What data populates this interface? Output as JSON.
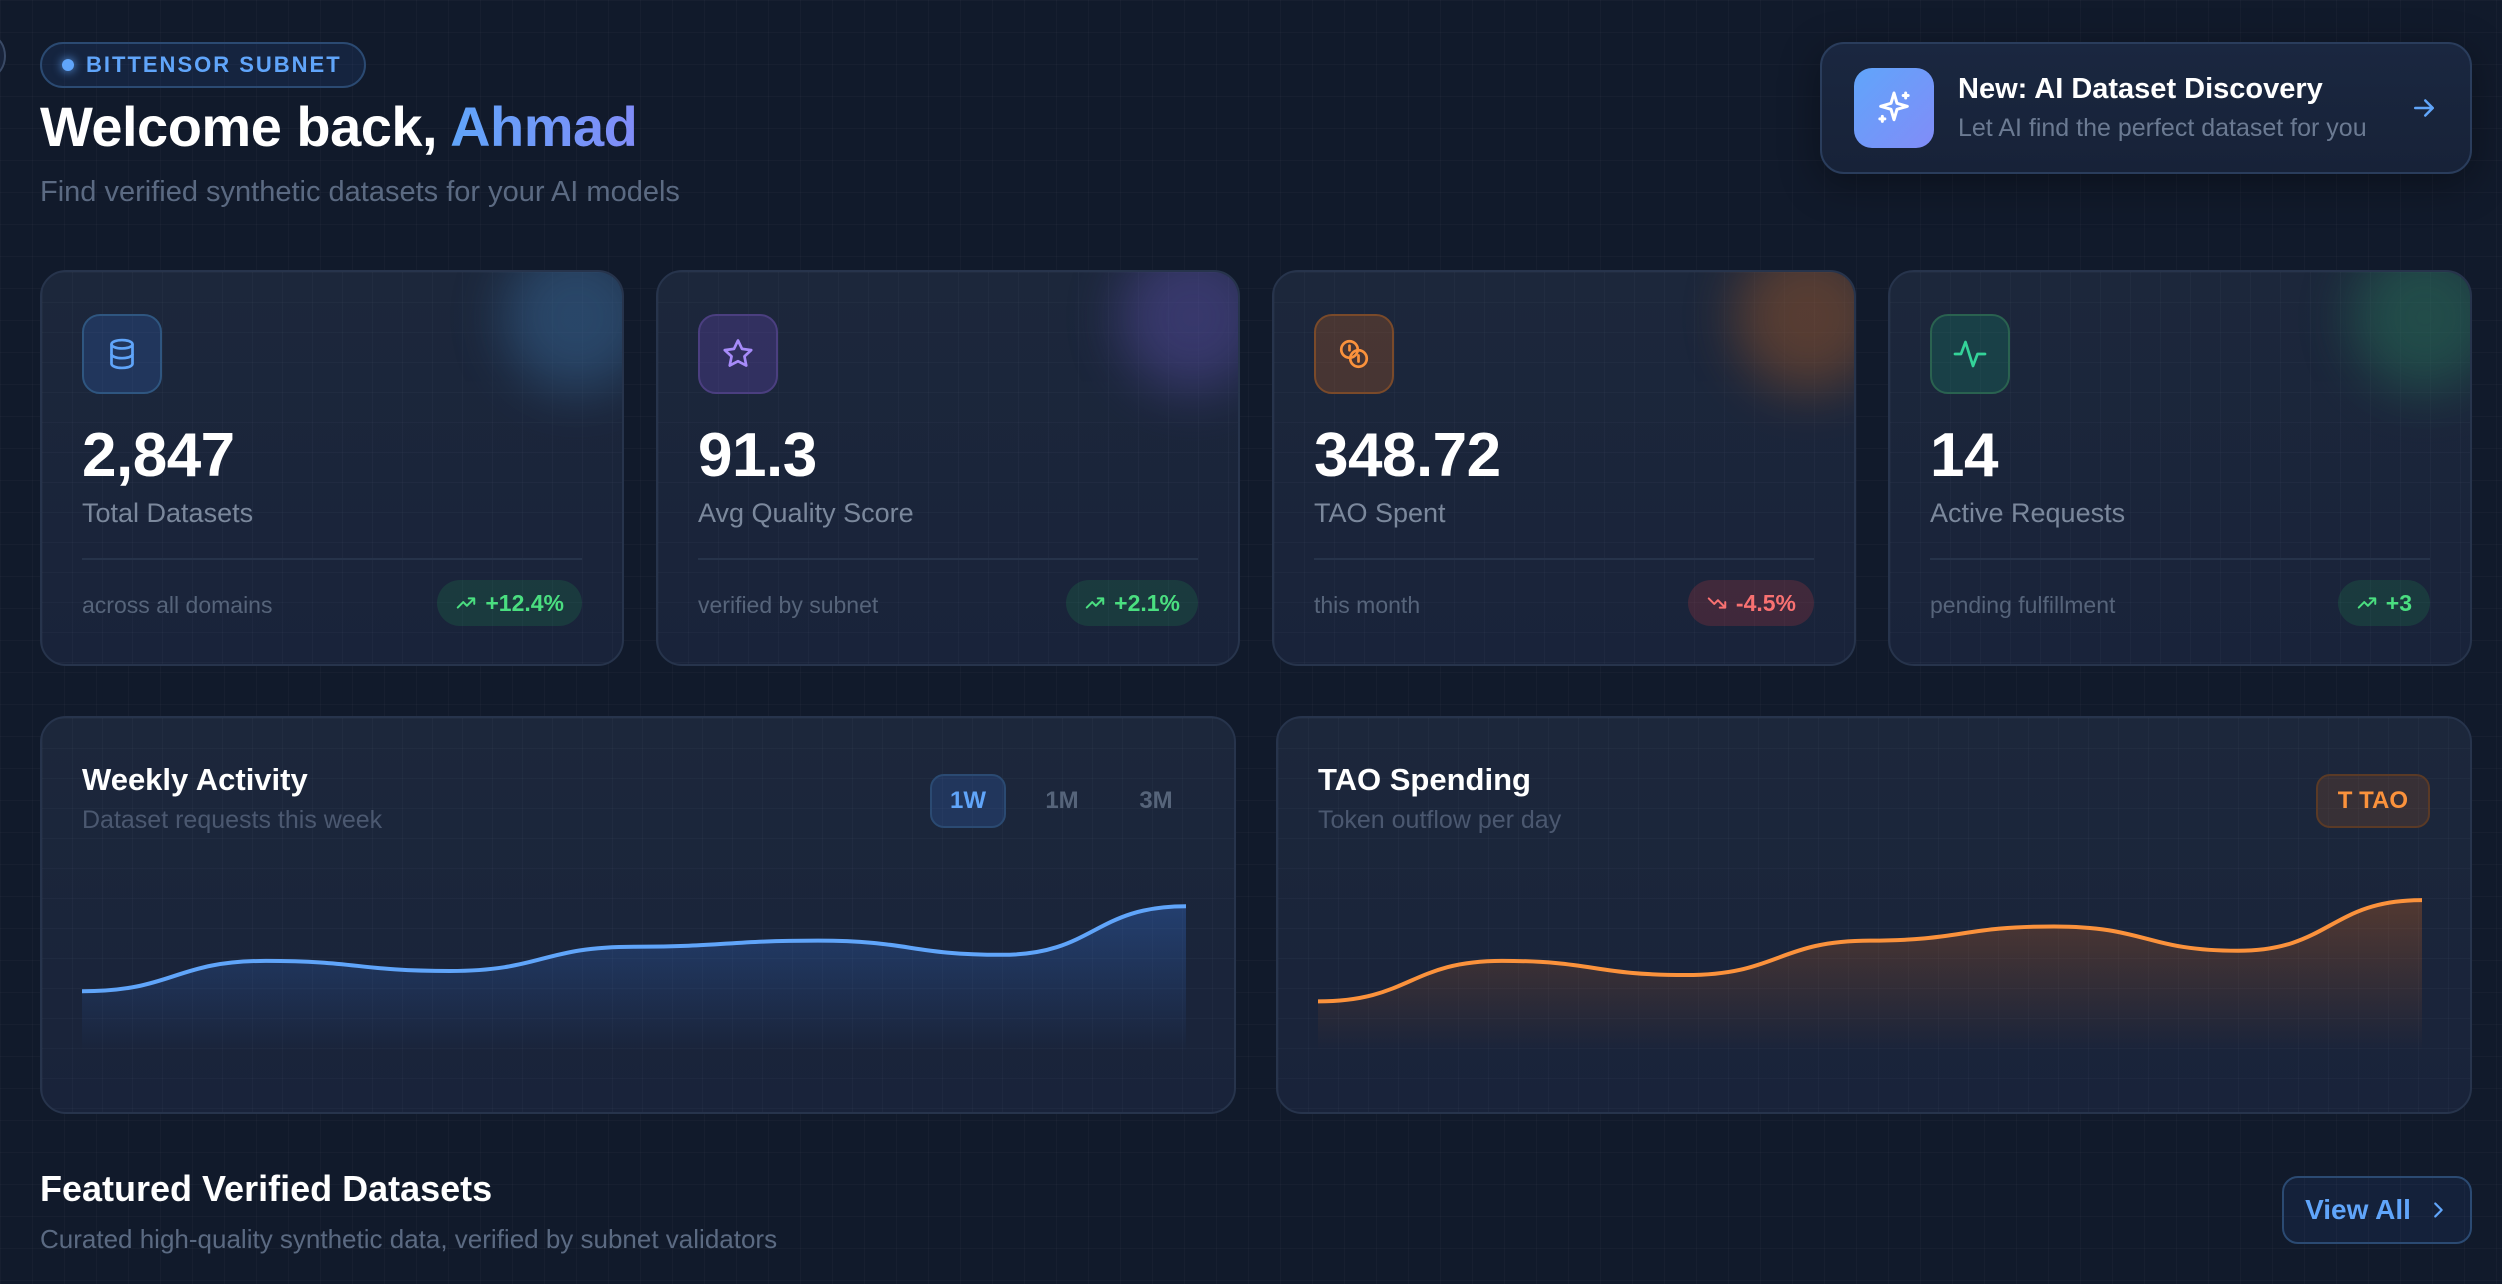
{
  "header": {
    "badge": "BITTENSOR SUBNET",
    "welcome_prefix": "Welcome back,",
    "user_name": "Ahmad",
    "subtitle": "Find verified synthetic datasets for your AI models"
  },
  "promo": {
    "title": "New: AI Dataset Discovery",
    "subtitle": "Let AI find the perfect dataset for you",
    "icon": "sparkles-icon"
  },
  "stats": [
    {
      "icon": "database-icon",
      "value": "2,847",
      "label": "Total Datasets",
      "caption": "across all domains",
      "change": "+12.4%",
      "trend": "up",
      "accent": "#60a5fa"
    },
    {
      "icon": "star-icon",
      "value": "91.3",
      "label": "Avg Quality Score",
      "caption": "verified by subnet",
      "change": "+2.1%",
      "trend": "up",
      "accent": "#a78bfa"
    },
    {
      "icon": "coins-icon",
      "value": "348.72",
      "label": "TAO Spent",
      "caption": "this month",
      "change": "-4.5%",
      "trend": "down",
      "accent": "#fb923c"
    },
    {
      "icon": "activity-icon",
      "value": "14",
      "label": "Active Requests",
      "caption": "pending fulfillment",
      "change": "+3",
      "trend": "up",
      "accent": "#34d399"
    }
  ],
  "weekly_activity": {
    "title": "Weekly Activity",
    "subtitle": "Dataset requests this week",
    "ranges": [
      "1W",
      "1M",
      "3M"
    ],
    "active_range": "1W",
    "color": "#60a5fa"
  },
  "tao_spending": {
    "title": "TAO Spending",
    "subtitle": "Token outflow per day",
    "badge": "T TAO",
    "color": "#fb923c"
  },
  "chart_data": [
    {
      "type": "area",
      "name": "weekly_activity",
      "x": [
        0,
        1,
        2,
        3,
        4,
        5,
        6
      ],
      "values": [
        30,
        45,
        40,
        52,
        55,
        48,
        72
      ]
    },
    {
      "type": "area",
      "name": "tao_spending",
      "x": [
        0,
        1,
        2,
        3,
        4,
        5,
        6
      ],
      "values": [
        25,
        45,
        38,
        55,
        62,
        50,
        75
      ]
    }
  ],
  "featured": {
    "title": "Featured Verified Datasets",
    "subtitle": "Curated high-quality synthetic data, verified by subnet validators",
    "view_all": "View All"
  }
}
